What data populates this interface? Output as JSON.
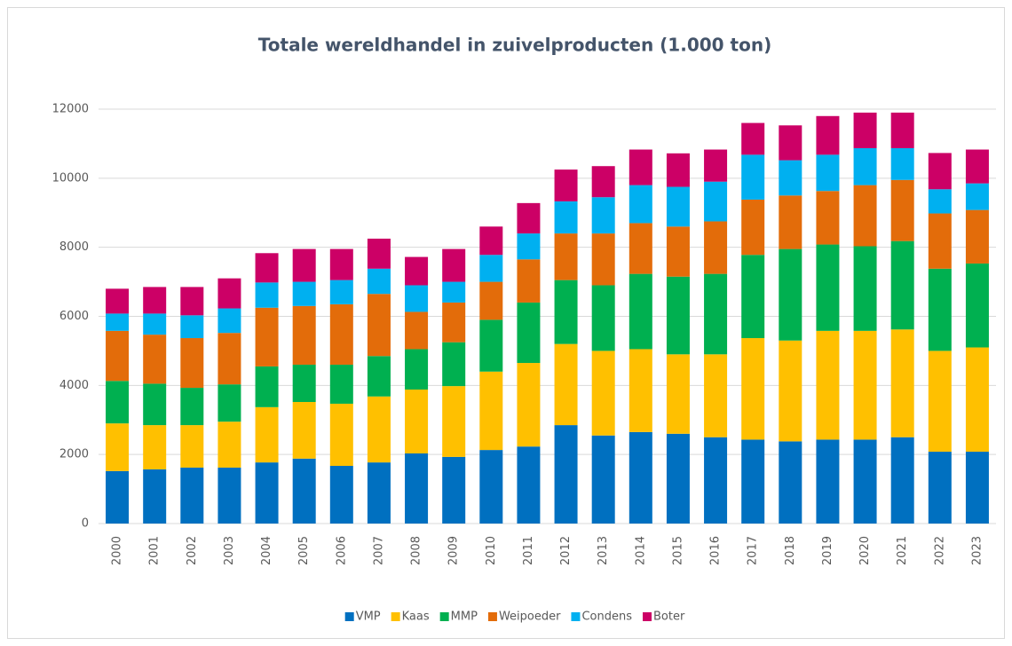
{
  "chart_data": {
    "type": "stacked_bar",
    "title": "Totale wereldhandel in zuivelproducten (1.000 ton)",
    "categories": [
      "2000",
      "2001",
      "2002",
      "2003",
      "2004",
      "2005",
      "2006",
      "2007",
      "2008",
      "2009",
      "2010",
      "2011",
      "2012",
      "2013",
      "2014",
      "2015",
      "2016",
      "2017",
      "2018",
      "2019",
      "2020",
      "2021",
      "2022",
      "2023"
    ],
    "series": [
      {
        "name": "VMP",
        "color": "#0070c0",
        "values": [
          1520,
          1570,
          1620,
          1620,
          1770,
          1880,
          1670,
          1770,
          2030,
          1930,
          2130,
          2230,
          2850,
          2550,
          2650,
          2600,
          2500,
          2430,
          2380,
          2430,
          2430,
          2500,
          2080,
          2080
        ]
      },
      {
        "name": "Kaas",
        "color": "#ffc000",
        "values": [
          1380,
          1280,
          1230,
          1330,
          1600,
          1640,
          1800,
          1910,
          1850,
          2050,
          2270,
          2420,
          2350,
          2450,
          2400,
          2300,
          2400,
          2940,
          2920,
          3150,
          3150,
          3120,
          2920,
          3020
        ]
      },
      {
        "name": "MMP",
        "color": "#00b050",
        "values": [
          1230,
          1200,
          1080,
          1080,
          1180,
          1080,
          1130,
          1170,
          1170,
          1270,
          1500,
          1750,
          1850,
          1900,
          2180,
          2250,
          2330,
          2410,
          2650,
          2500,
          2450,
          2560,
          2380,
          2430
        ]
      },
      {
        "name": "Weipoeder",
        "color": "#e36c0a",
        "values": [
          1450,
          1420,
          1440,
          1490,
          1700,
          1700,
          1750,
          1800,
          1080,
          1150,
          1100,
          1250,
          1350,
          1500,
          1470,
          1450,
          1520,
          1600,
          1550,
          1550,
          1770,
          1770,
          1600,
          1550
        ]
      },
      {
        "name": "Condens",
        "color": "#00b0f0",
        "values": [
          500,
          610,
          660,
          710,
          730,
          700,
          700,
          730,
          770,
          600,
          780,
          750,
          930,
          1050,
          1100,
          1150,
          1150,
          1300,
          1020,
          1050,
          1070,
          920,
          700,
          770
        ]
      },
      {
        "name": "Boter",
        "color": "#cc0066",
        "values": [
          720,
          770,
          820,
          870,
          850,
          950,
          900,
          870,
          820,
          950,
          820,
          880,
          920,
          900,
          1030,
          970,
          930,
          920,
          1010,
          1120,
          1030,
          1030,
          1050,
          980
        ]
      }
    ],
    "ylim": [
      0,
      12000
    ],
    "yticks": [
      0,
      2000,
      4000,
      6000,
      8000,
      10000,
      12000
    ],
    "grid": true,
    "legend": "bottom"
  }
}
